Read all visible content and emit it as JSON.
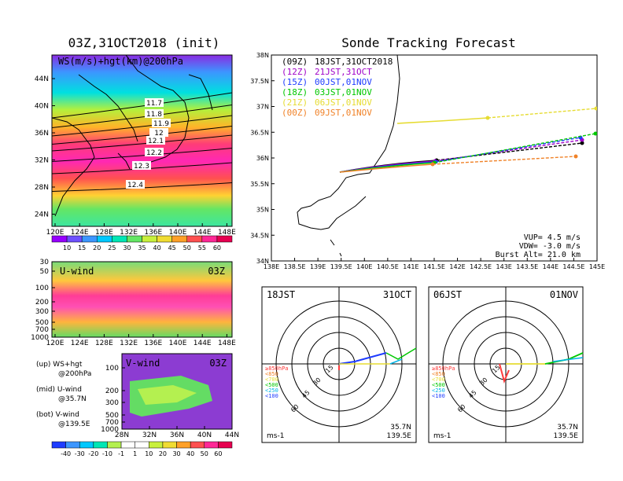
{
  "left_title": "03Z,31OCT2018 (init)",
  "right_title": "Sonde Tracking Forecast",
  "panels": {
    "ws_map": {
      "label": "WS(m/s)+hgt(km)@200hPa",
      "lat_ticks": [
        "44N",
        "40N",
        "36N",
        "32N",
        "28N",
        "24N"
      ],
      "lon_ticks": [
        "120E",
        "124E",
        "128E",
        "132E",
        "136E",
        "140E",
        "144E",
        "148E"
      ],
      "contour_labels": [
        "11.7",
        "11.8",
        "11.9",
        "12",
        "12.1",
        "12.2",
        "12.3",
        "12.4"
      ],
      "colorbar_ticks": [
        "10",
        "15",
        "20",
        "25",
        "30",
        "35",
        "40",
        "45",
        "50",
        "55",
        "60"
      ]
    },
    "uwind": {
      "label": "U-wind",
      "time": "03Z",
      "p_ticks": [
        "30",
        "50",
        "100",
        "200",
        "300",
        "500",
        "700",
        "1000"
      ],
      "lon_ticks": [
        "120E",
        "124E",
        "128E",
        "132E",
        "136E",
        "140E",
        "144E",
        "148E"
      ]
    },
    "vwind": {
      "label": "V-wind",
      "time": "03Z",
      "p_ticks": [
        "100",
        "200",
        "300",
        "500",
        "700",
        "1000"
      ],
      "lat_ticks": [
        "28N",
        "32N",
        "36N",
        "40N",
        "44N"
      ],
      "colorbar_ticks": [
        "-40",
        "-30",
        "-20",
        "-10",
        "-1",
        "1",
        "10",
        "20",
        "30",
        "40",
        "50",
        "60"
      ]
    },
    "legend": {
      "lines": [
        "(up) WS+hgt",
        "@200hPa",
        "(mid) U-wind",
        "@35.7N",
        "(bot) V-wind",
        "@139.5E"
      ]
    }
  },
  "tracking": {
    "entries": [
      {
        "utc": "(09Z)",
        "jst": "18JST,31OCT2018",
        "color": "#000000"
      },
      {
        "utc": "(12Z)",
        "jst": "21JST,31OCT",
        "color": "#a000c8"
      },
      {
        "utc": "(15Z)",
        "jst": "00JST,01NOV",
        "color": "#1e3cff"
      },
      {
        "utc": "(18Z)",
        "jst": "03JST,01NOV",
        "color": "#00c800"
      },
      {
        "utc": "(21Z)",
        "jst": "06JST,01NOV",
        "color": "#e6dc32"
      },
      {
        "utc": "(00Z)",
        "jst": "09JST,01NOV",
        "color": "#f08228"
      }
    ],
    "lat_ticks": [
      "38N",
      "37.5N",
      "37N",
      "36.5N",
      "36N",
      "35.5N",
      "35N",
      "34.5N",
      "34N"
    ],
    "lon_ticks": [
      "138E",
      "138.5E",
      "139E",
      "139.5E",
      "140E",
      "140.5E",
      "141E",
      "141.5E",
      "142E",
      "142.5E",
      "143E",
      "143.5E",
      "144E",
      "144.5E",
      "145E"
    ],
    "params": [
      "VUP= 4.5 m/s",
      "VDW= -3.0 m/s",
      "Burst Alt= 21.0 km"
    ]
  },
  "hodographs": [
    {
      "left": "18JST",
      "right": "31OCT",
      "ring_labels": [
        "15",
        "30",
        "45",
        "60"
      ],
      "unit": "ms-1",
      "loc1": "35.7N",
      "loc2": "139.5E",
      "levels": [
        "≥850hPa",
        "<850",
        "<700",
        "<500",
        "<250",
        "<100"
      ]
    },
    {
      "left": "06JST",
      "right": "01NOV",
      "ring_labels": [
        "15",
        "30",
        "45",
        "60"
      ],
      "unit": "ms-1",
      "loc1": "35.7N",
      "loc2": "139.5E",
      "levels": [
        "≥850hPa",
        "<850",
        "<700",
        "<500",
        "<250",
        "<100"
      ]
    }
  ],
  "colors": {
    "ws_scale": [
      "#9600ff",
      "#6e50ff",
      "#3c96ff",
      "#00c8ff",
      "#00e6b4",
      "#64e664",
      "#c8f03c",
      "#f0dc32",
      "#ffa028",
      "#ff5050",
      "#ff2896",
      "#e60050"
    ],
    "level_colors": [
      "#ff3c3c",
      "#f08228",
      "#e6dc32",
      "#00c800",
      "#00b4e6",
      "#1e3cff"
    ]
  }
}
